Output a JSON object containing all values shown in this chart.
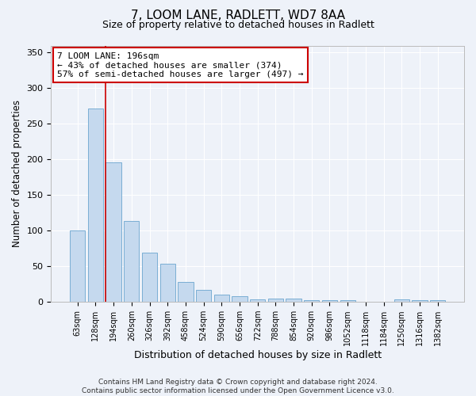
{
  "title1": "7, LOOM LANE, RADLETT, WD7 8AA",
  "title2": "Size of property relative to detached houses in Radlett",
  "xlabel": "Distribution of detached houses by size in Radlett",
  "ylabel": "Number of detached properties",
  "categories": [
    "63sqm",
    "128sqm",
    "194sqm",
    "260sqm",
    "326sqm",
    "392sqm",
    "458sqm",
    "524sqm",
    "590sqm",
    "656sqm",
    "722sqm",
    "788sqm",
    "854sqm",
    "920sqm",
    "986sqm",
    "1052sqm",
    "1118sqm",
    "1184sqm",
    "1250sqm",
    "1316sqm",
    "1382sqm"
  ],
  "values": [
    100,
    272,
    196,
    114,
    69,
    54,
    28,
    17,
    10,
    8,
    4,
    5,
    5,
    3,
    3,
    3,
    0,
    0,
    4,
    3,
    2
  ],
  "bar_color": "#c5d9ee",
  "bar_edge_color": "#7aaed4",
  "bg_color": "#eef2f9",
  "grid_color": "#ffffff",
  "vline_x_index": 2,
  "vline_color": "#cc0000",
  "annotation_line1": "7 LOOM LANE: 196sqm",
  "annotation_line2": "← 43% of detached houses are smaller (374)",
  "annotation_line3": "57% of semi-detached houses are larger (497) →",
  "annotation_box_color": "#ffffff",
  "annotation_edge_color": "#cc0000",
  "ylim": [
    0,
    360
  ],
  "yticks": [
    0,
    50,
    100,
    150,
    200,
    250,
    300,
    350
  ],
  "footer": "Contains HM Land Registry data © Crown copyright and database right 2024.\nContains public sector information licensed under the Open Government Licence v3.0."
}
